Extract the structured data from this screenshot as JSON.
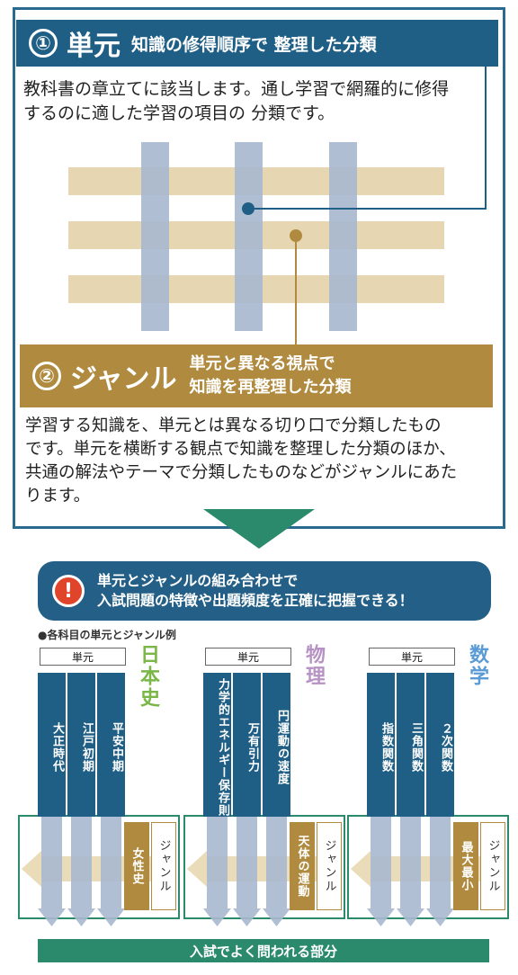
{
  "section1": {
    "number": "①",
    "title": "単元",
    "subtitle": "知識の修得順序で 整理した分類",
    "line1": "教科書の章立てに該当します。通し学習で網羅的に修得",
    "line2": "するのに適した学習の項目の 分類です。"
  },
  "section2": {
    "number": "②",
    "title": "ジャンル",
    "subtitle_line1": "単元と異なる視点で",
    "subtitle_line2": "知識を再整理した分類",
    "line1": "学習する知識を、単元とは異なる切り口で分類したもの",
    "line2": "です。単元を横断する観点で知識を整理した分類のほか、",
    "line3": "共通の解法やテーマで分類したものなどがジャンルにあた",
    "line4": "ります。"
  },
  "banner": {
    "icon": "exclamation-icon",
    "line1": "単元とジャンルの組み合わせで",
    "line2": "入試問題の特徴や出題頻度を正確に把握できる！"
  },
  "examples_heading": "●各科目の単元とジャンル例",
  "panels": [
    {
      "unit_label": "単元",
      "subject": "日本史",
      "subject_color": "#7ab648",
      "units": [
        "大正時代",
        "江戸初期",
        "平安中期"
      ],
      "genre": "女性史",
      "genre_label": "ジャンル"
    },
    {
      "unit_label": "単元",
      "subject": "物理",
      "subject_color": "#b792c4",
      "units": [
        "力学的エネルギー保存則",
        "万有引力",
        "円運動の速度"
      ],
      "genre": "天体の運動",
      "genre_label": "ジャンル"
    },
    {
      "unit_label": "単元",
      "subject": "数学",
      "subject_color": "#5a9bd6",
      "units": [
        "指数関数",
        "三角関数",
        "２次関数"
      ],
      "genre": "最大最小",
      "genre_label": "ジャンル"
    }
  ],
  "bottom_bar": "入試でよく問われる部分",
  "colors": {
    "unit_blue": "#1f5f86",
    "genre_gold": "#b08a3e",
    "frame_green": "#2b8a6c"
  }
}
